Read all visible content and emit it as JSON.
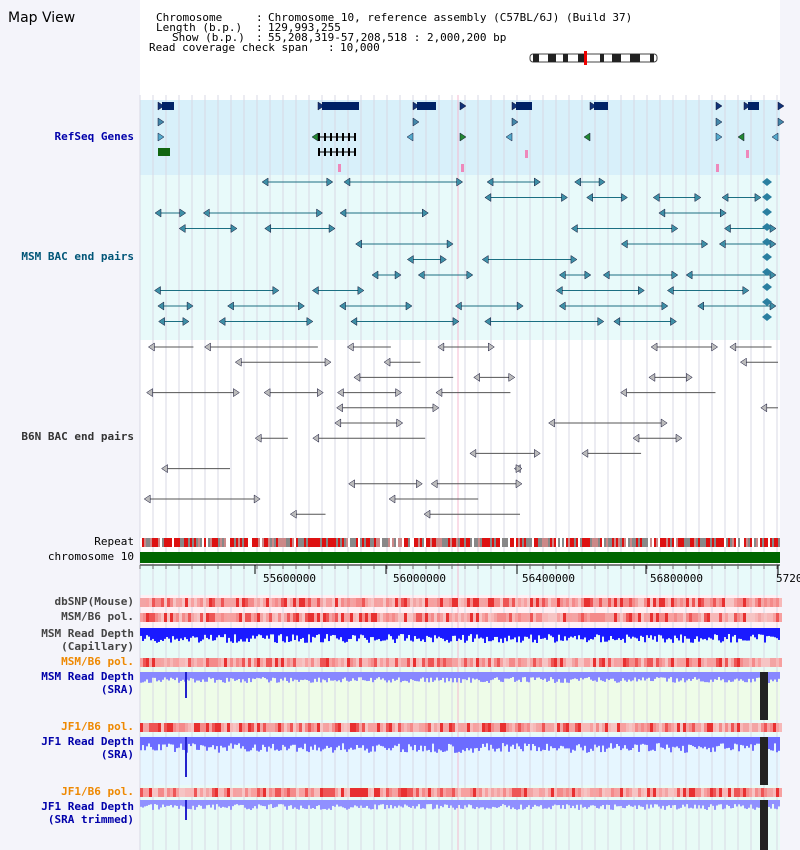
{
  "title": "Map View",
  "info": {
    "chromosome_label": "Chromosome",
    "chromosome_value": "Chromosome 10, reference assembly (C57BL/6J) (Build 37)",
    "length_label": "Length (b.p.)",
    "length_value": "129,993,255",
    "show_label": "Show (b.p.)",
    "show_value": "55,208,319-57,208,518 : 2,000,200 bp",
    "coverage_label": "Read coverage check span",
    "coverage_value": "10,000"
  },
  "tracks": {
    "refseq": {
      "label": "RefSeq Genes",
      "color": "#0000aa"
    },
    "msm_bac": {
      "label": "MSM BAC end pairs",
      "color": "#005577"
    },
    "b6n_bac": {
      "label": "B6N BAC end pairs",
      "color": "#333333"
    },
    "repeat": {
      "label": "Repeat"
    },
    "chromosome": {
      "label": "chromosome 10"
    },
    "dbsnp": {
      "label": "dbSNP(Mouse)"
    },
    "msm_b6_pol_1": {
      "label": "MSM/B6 pol."
    },
    "msm_read_depth_cap_1": {
      "label": "MSM Read Depth"
    },
    "msm_read_depth_cap_2": {
      "label": "(Capillary)"
    },
    "msm_b6_pol_2": {
      "label": "MSM/B6 pol.",
      "color": "#ee8800"
    },
    "msm_read_depth_sra_1": {
      "label": "MSM Read Depth",
      "color": "#0000aa"
    },
    "msm_read_depth_sra_2": {
      "label": "(SRA)",
      "color": "#0000aa"
    },
    "jf1_b6_pol_1": {
      "label": "JF1/B6 pol.",
      "color": "#ee8800"
    },
    "jf1_read_depth_sra_1": {
      "label": "JF1 Read Depth",
      "color": "#0000aa"
    },
    "jf1_read_depth_sra_2": {
      "label": "(SRA)",
      "color": "#0000aa"
    },
    "jf1_b6_pol_2": {
      "label": "JF1/B6 pol.",
      "color": "#ee8800"
    },
    "jf1_read_depth_trim_1": {
      "label": "JF1 Read Depth",
      "color": "#0000aa"
    },
    "jf1_read_depth_trim_2": {
      "label": "(SRA trimmed)",
      "color": "#0000aa"
    }
  },
  "axis": {
    "ticks": [
      "55600000",
      "56000000",
      "56400000",
      "56800000",
      "5720"
    ]
  }
}
